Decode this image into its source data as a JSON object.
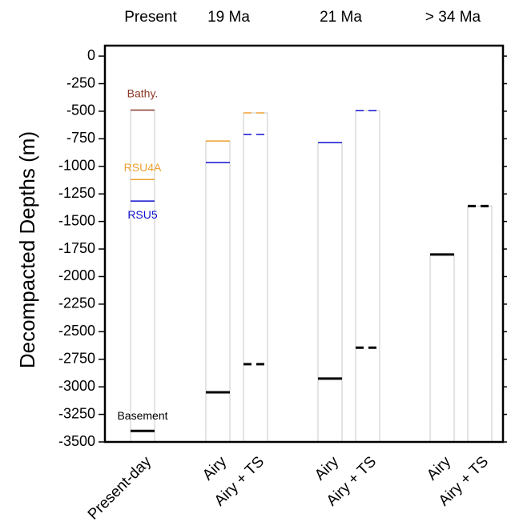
{
  "chart_data": {
    "type": "horizon-columns",
    "ylabel": "Decompacted Depths (m)",
    "groups": [
      "Present",
      "19 Ma",
      "21 Ma",
      "> 34 Ma"
    ],
    "categories": [
      "Present-day",
      "Airy",
      "Airy + TS",
      "Airy",
      "Airy + TS",
      "Airy",
      "Airy + TS"
    ],
    "category_group": [
      0,
      1,
      1,
      2,
      2,
      3,
      3
    ],
    "line_styles": [
      "solid",
      "solid",
      "dashed",
      "solid",
      "dashed",
      "solid",
      "dashed"
    ],
    "series": [
      {
        "name": "Bathy.",
        "color": "#8b3a2a",
        "line_width": 1.5,
        "values": [
          -490,
          null,
          null,
          null,
          null,
          null,
          null
        ]
      },
      {
        "name": "RSU4A",
        "color": "#f0a030",
        "line_width": 1.5,
        "values": [
          -1120,
          -770,
          -515,
          null,
          null,
          null,
          null
        ]
      },
      {
        "name": "RSU5",
        "color": "#1010d0",
        "line_width": 1.5,
        "values": [
          -1315,
          -965,
          -710,
          -785,
          -495,
          null,
          null
        ]
      },
      {
        "name": "Basement",
        "color": "#000000",
        "line_width": 3,
        "values": [
          -3400,
          -3050,
          -2795,
          -2925,
          -2645,
          -1800,
          -1360
        ]
      }
    ],
    "ylim": [
      -3500,
      95
    ],
    "yticks": [
      0,
      -250,
      -500,
      -750,
      -1000,
      -1250,
      -1500,
      -1750,
      -2000,
      -2250,
      -2500,
      -2750,
      -3000,
      -3250,
      -3500
    ]
  }
}
